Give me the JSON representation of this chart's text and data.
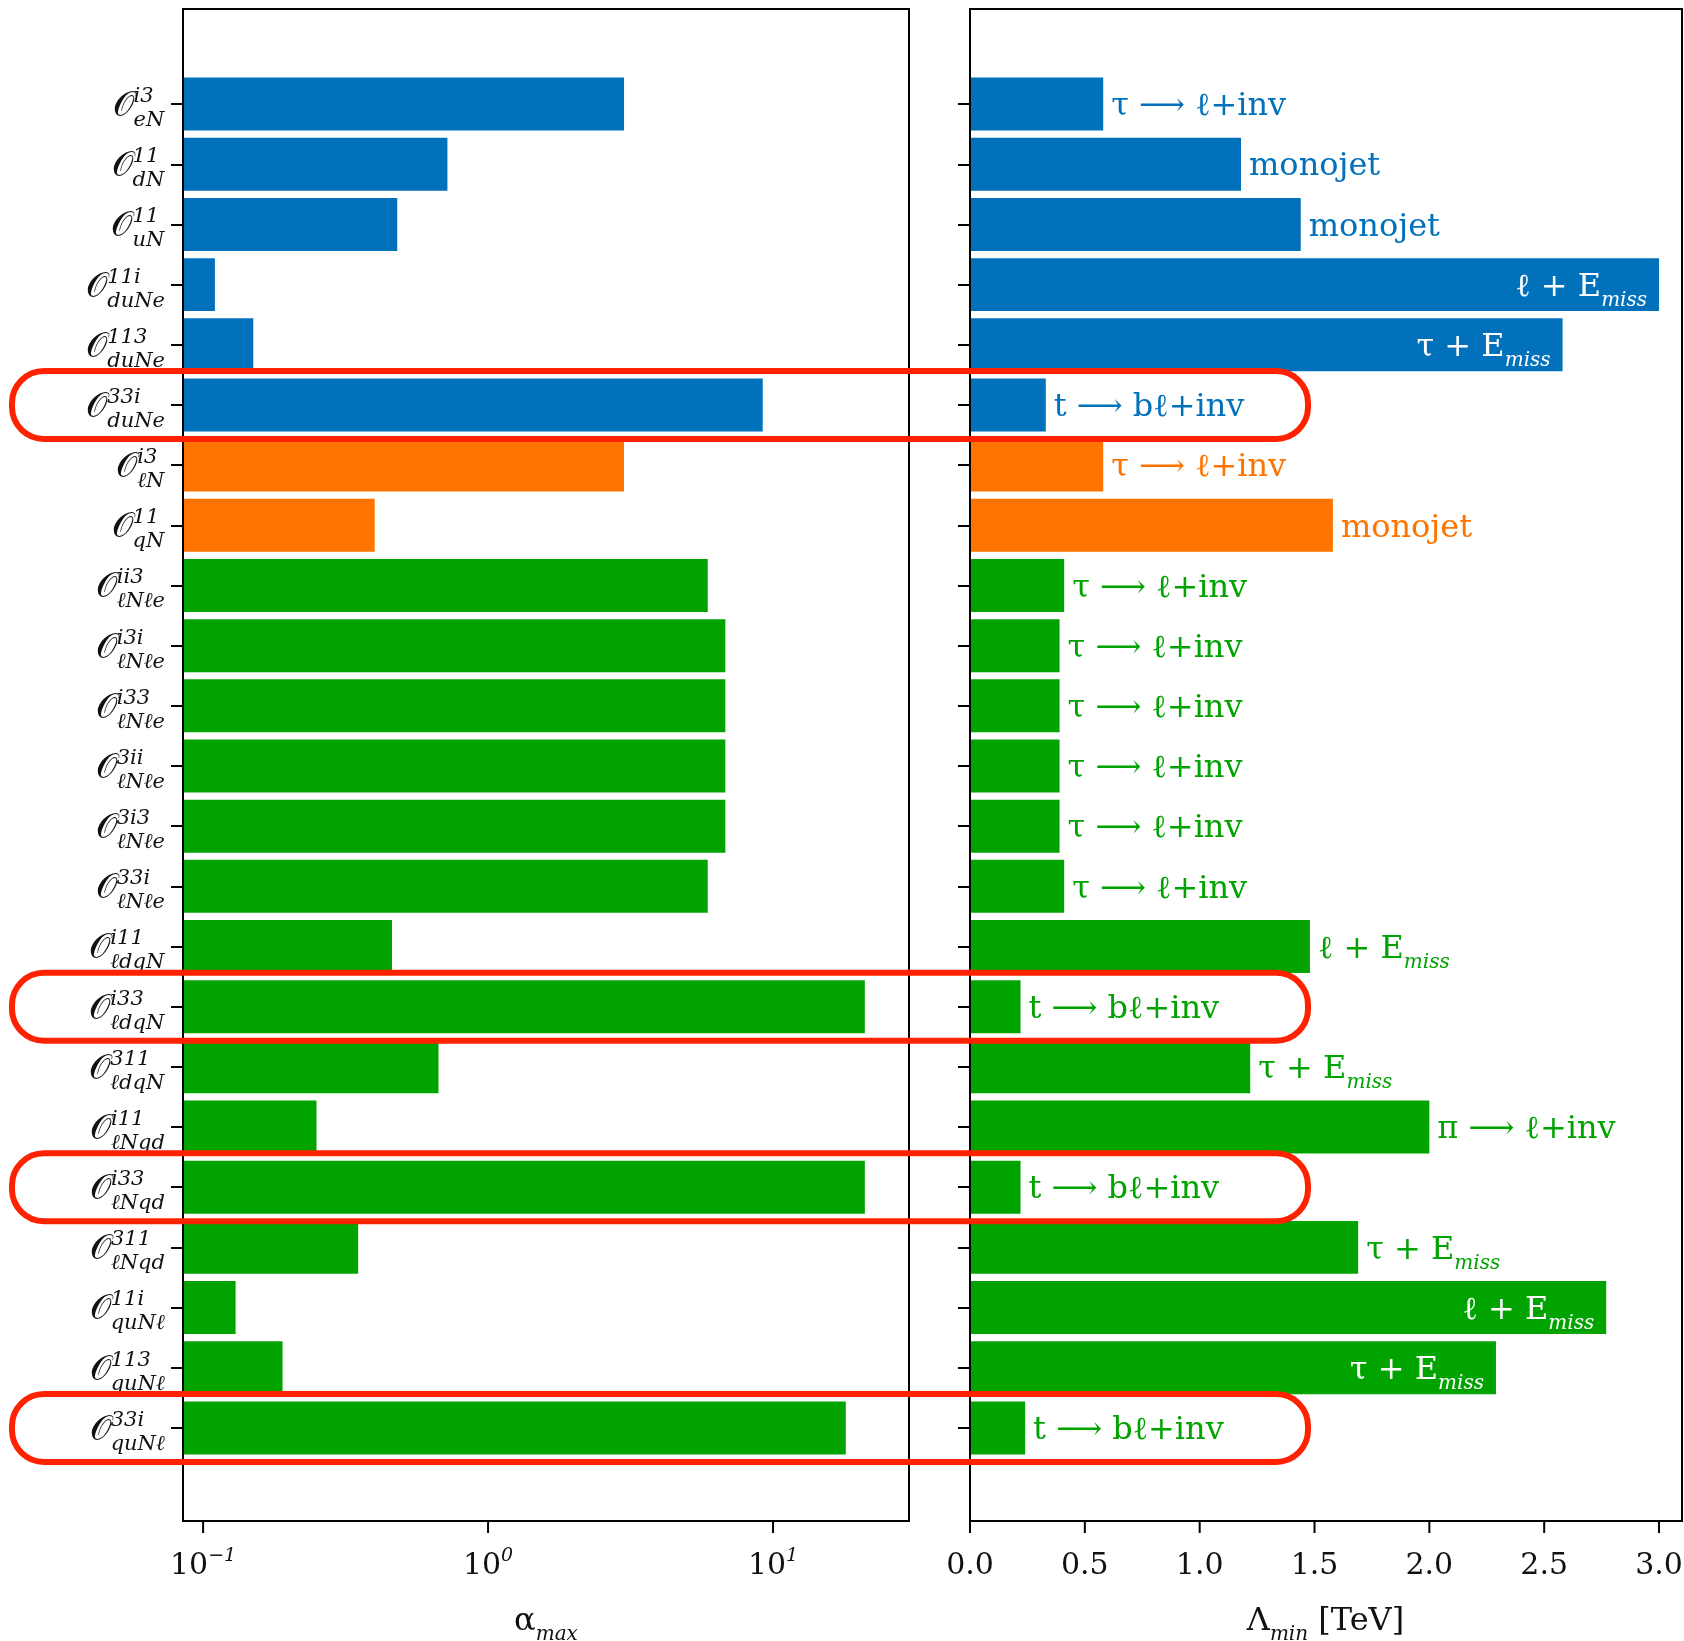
{
  "chart_data": [
    {
      "type": "bar",
      "orientation": "horizontal",
      "log": "x",
      "xlabel": "α$_{max}$",
      "categories": [
        "𝒪$^{i3}$$_{eN}$",
        "𝒪$^{11}$$_{dN}$",
        "𝒪$^{11}$$_{uN}$",
        "𝒪$^{11i}$$_{duNe}$",
        "𝒪$^{113}$$_{duNe}$",
        "𝒪$^{33i}$$_{duNe}$",
        "𝒪$^{i3}$$_{ℓN}$",
        "𝒪$^{11}$$_{qN}$",
        "𝒪$^{ii3}$$_{ℓNℓe}$",
        "𝒪$^{i3i}$$_{ℓNℓe}$",
        "𝒪$^{i33}$$_{ℓNℓe}$",
        "𝒪$^{3ii}$$_{ℓNℓe}$",
        "𝒪$^{3i3}$$_{ℓNℓe}$",
        "𝒪$^{33i}$$_{ℓNℓe}$",
        "𝒪$^{i11}$$_{ℓdqN}$",
        "𝒪$^{i33}$$_{ℓdqN}$",
        "𝒪$^{311}$$_{ℓdqN}$",
        "𝒪$^{i11}$$_{ℓNqd}$",
        "𝒪$^{i33}$$_{ℓNqd}$",
        "𝒪$^{311}$$_{ℓNqd}$",
        "𝒪$^{11i}$$_{quNℓ}$",
        "𝒪$^{113}$$_{quNℓ}$",
        "𝒪$^{33i}$$_{quNℓ}$"
      ],
      "values": [
        3.0,
        0.72,
        0.48,
        0.11,
        0.15,
        9.2,
        3.0,
        0.4,
        5.9,
        6.8,
        6.8,
        6.8,
        6.8,
        5.9,
        0.46,
        21,
        0.67,
        0.25,
        21,
        0.35,
        0.13,
        0.19,
        18
      ],
      "colors": [
        "#0071ba",
        "#0071ba",
        "#0071ba",
        "#0071ba",
        "#0071ba",
        "#0071ba",
        "#ff7400",
        "#ff7400",
        "#00a300",
        "#00a300",
        "#00a300",
        "#00a300",
        "#00a300",
        "#00a300",
        "#00a300",
        "#00a300",
        "#00a300",
        "#00a300",
        "#00a300",
        "#00a300",
        "#00a300",
        "#00a300",
        "#00a300"
      ],
      "xlim": [
        0.085,
        30
      ],
      "xticks": [
        {
          "value": 0.1,
          "label": "10$^{−1}$"
        },
        {
          "value": 1,
          "label": "10$^{0}$"
        },
        {
          "value": 10,
          "label": "10$^{1}$"
        }
      ]
    },
    {
      "type": "bar",
      "orientation": "horizontal",
      "xlabel": "Λ$_{min}$ [TeV]",
      "tick_labels": "x",
      "categories": [
        "𝒪$^{i3}$$_{eN}$",
        "𝒪$^{11}$$_{dN}$",
        "𝒪$^{11}$$_{uN}$",
        "𝒪$^{11i}$$_{duNe}$",
        "𝒪$^{113}$$_{duNe}$",
        "𝒪$^{33i}$$_{duNe}$",
        "𝒪$^{i3}$$_{ℓN}$",
        "𝒪$^{11}$$_{qN}$",
        "𝒪$^{ii3}$$_{ℓNℓe}$",
        "𝒪$^{i3i}$$_{ℓNℓe}$",
        "𝒪$^{i33}$$_{ℓNℓe}$",
        "𝒪$^{3ii}$$_{ℓNℓe}$",
        "𝒪$^{3i3}$$_{ℓNℓe}$",
        "𝒪$^{33i}$$_{ℓNℓe}$",
        "𝒪$^{i11}$$_{ℓdqN}$",
        "𝒪$^{i33}$$_{ℓdqN}$",
        "𝒪$^{311}$$_{ℓdqN}$",
        "𝒪$^{i11}$$_{ℓNqd}$",
        "𝒪$^{i33}$$_{ℓNqd}$",
        "𝒪$^{311}$$_{ℓNqd}$",
        "𝒪$^{11i}$$_{quNℓ}$",
        "𝒪$^{113}$$_{quNℓ}$",
        "𝒪$^{33i}$$_{quNℓ}$"
      ],
      "values": [
        0.58,
        1.18,
        1.44,
        3.0,
        2.58,
        0.33,
        0.58,
        1.58,
        0.41,
        0.39,
        0.39,
        0.39,
        0.39,
        0.41,
        1.48,
        0.22,
        1.22,
        2.0,
        0.22,
        1.69,
        2.77,
        2.29,
        0.24
      ],
      "colors": [
        "#0071ba",
        "#0071ba",
        "#0071ba",
        "#0071ba",
        "#0071ba",
        "#0071ba",
        "#ff7400",
        "#ff7400",
        "#00a300",
        "#00a300",
        "#00a300",
        "#00a300",
        "#00a300",
        "#00a300",
        "#00a300",
        "#00a300",
        "#00a300",
        "#00a300",
        "#00a300",
        "#00a300",
        "#00a300",
        "#00a300",
        "#00a300"
      ],
      "xlim": [
        0,
        3.1
      ],
      "xticks": [
        {
          "value": 0,
          "label": "0.0"
        },
        {
          "value": 0.5,
          "label": "0.5"
        },
        {
          "value": 1,
          "label": "1.0"
        },
        {
          "value": 1.5,
          "label": "1.5"
        },
        {
          "value": 2,
          "label": "2.0"
        },
        {
          "value": 2.5,
          "label": "2.5"
        },
        {
          "value": 3,
          "label": "3.0"
        }
      ],
      "annotations": [
        {
          "text": "τ ⟶ ℓ+inv",
          "x": 0.58,
          "y": "𝒪$^{i3}$$_{eN}$"
        },
        {
          "text": "monojet",
          "x": 1.18,
          "y": "𝒪$^{11}$$_{dN}$"
        },
        {
          "text": "monojet",
          "x": 1.44,
          "y": "𝒪$^{11}$$_{uN}$"
        },
        {
          "text": "ℓ + E$_{miss}$",
          "x": 3.0,
          "y": "𝒪$^{11i}$$_{duNe}$"
        },
        {
          "text": "τ + E$_{miss}$",
          "x": 2.58,
          "y": "𝒪$^{113}$$_{duNe}$"
        },
        {
          "text": "t ⟶ bℓ+inv",
          "x": 0.33,
          "y": "𝒪$^{33i}$$_{duNe}$"
        },
        {
          "text": "τ ⟶ ℓ+inv",
          "x": 0.58,
          "y": "𝒪$^{i3}$$_{ℓN}$"
        },
        {
          "text": "monojet",
          "x": 1.58,
          "y": "𝒪$^{11}$$_{qN}$"
        },
        {
          "text": "τ ⟶ ℓ+inv",
          "x": 0.41,
          "y": "𝒪$^{ii3}$$_{ℓNℓe}$"
        },
        {
          "text": "τ ⟶ ℓ+inv",
          "x": 0.39,
          "y": "𝒪$^{i3i}$$_{ℓNℓe}$"
        },
        {
          "text": "τ ⟶ ℓ+inv",
          "x": 0.39,
          "y": "𝒪$^{i33}$$_{ℓNℓe}$"
        },
        {
          "text": "τ ⟶ ℓ+inv",
          "x": 0.39,
          "y": "𝒪$^{3ii}$$_{ℓNℓe}$"
        },
        {
          "text": "τ ⟶ ℓ+inv",
          "x": 0.39,
          "y": "𝒪$^{3i3}$$_{ℓNℓe}$"
        },
        {
          "text": "τ ⟶ ℓ+inv",
          "x": 0.41,
          "y": "𝒪$^{33i}$$_{ℓNℓe}$"
        },
        {
          "text": "ℓ + E$_{miss}$",
          "x": 1.48,
          "y": "𝒪$^{i11}$$_{ℓdqN}$"
        },
        {
          "text": "t ⟶ bℓ+inv",
          "x": 0.22,
          "y": "𝒪$^{i33}$$_{ℓdqN}$"
        },
        {
          "text": "τ + E$_{miss}$",
          "x": 1.22,
          "y": "𝒪$^{311}$$_{ℓdqN}$"
        },
        {
          "text": "π ⟶ ℓ+inv",
          "x": 2.0,
          "y": "𝒪$^{i11}$$_{ℓNqd}$"
        },
        {
          "text": "t ⟶ bℓ+inv",
          "x": 0.22,
          "y": "𝒪$^{i33}$$_{ℓNqd}$"
        },
        {
          "text": "τ + E$_{miss}$",
          "x": 1.69,
          "y": "𝒪$^{311}$$_{ℓNqd}$"
        },
        {
          "text": "ℓ + E$_{miss}$",
          "x": 2.77,
          "y": "𝒪$^{11i}$$_{quNℓ}$"
        },
        {
          "text": "τ + E$_{miss}$",
          "x": 2.29,
          "y": "𝒪$^{113}$$_{quNℓ}$"
        },
        {
          "text": "t ⟶ bℓ+inv",
          "x": 0.24,
          "y": "𝒪$^{33i}$$_{quNℓ}$"
        }
      ]
    }
  ]
}
